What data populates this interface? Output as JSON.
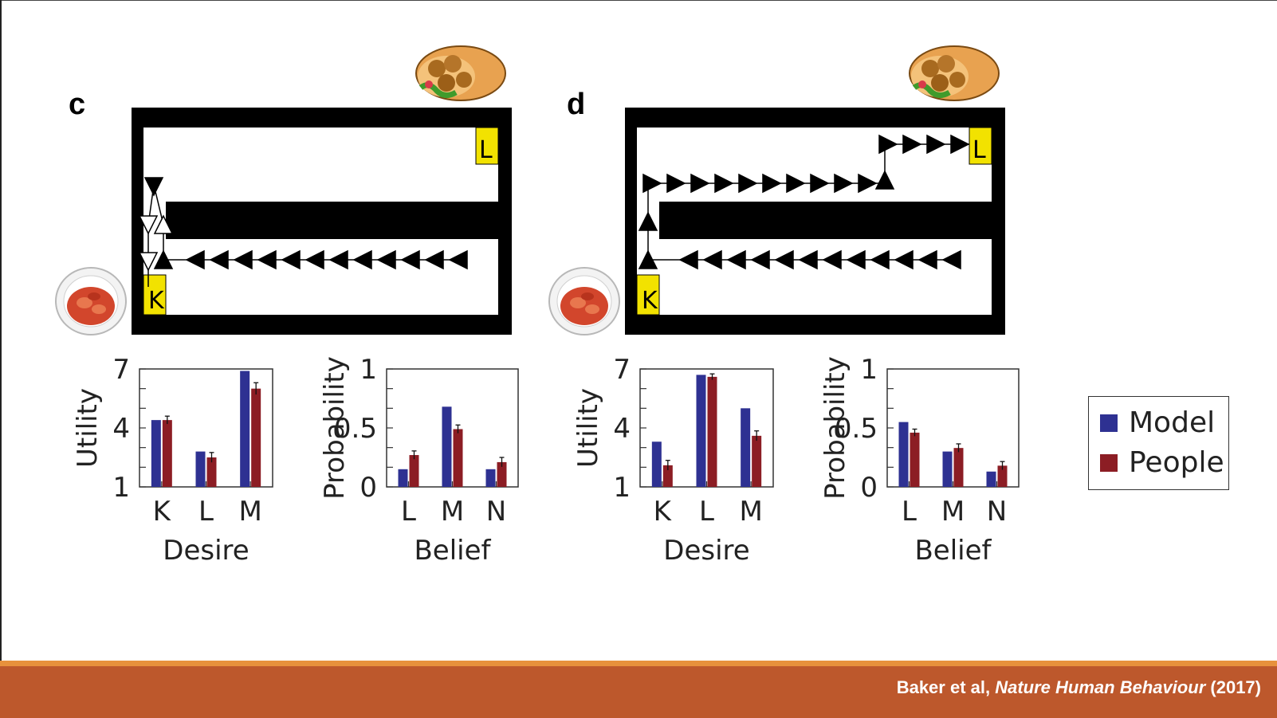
{
  "citation": {
    "authors": "Baker et al, ",
    "journal": "Nature Human Behaviour",
    "year": " (2017)"
  },
  "colors": {
    "model": "#2e3192",
    "people": "#8c1d24",
    "cell_yellow": "#f2e200",
    "footer": "#bd582c",
    "footer_accent": "#e7913c"
  },
  "panels": [
    {
      "label": "c",
      "maze_labels": {
        "left_cell": "K",
        "right_cell": "L"
      }
    },
    {
      "label": "d",
      "maze_labels": {
        "left_cell": "K",
        "right_cell": "L"
      }
    }
  ],
  "legend": {
    "model": "Model",
    "people": "People"
  },
  "chart_data": [
    {
      "panel": "c",
      "type": "bar",
      "xlabel": "Desire",
      "ylabel": "Utility",
      "categories": [
        "K",
        "L",
        "M"
      ],
      "ylim": [
        1,
        7
      ],
      "yticks": [
        "1",
        "4",
        "7"
      ],
      "series": [
        {
          "name": "Model",
          "values": [
            4.4,
            2.8,
            6.9
          ]
        },
        {
          "name": "People",
          "values": [
            4.4,
            2.5,
            6.0
          ]
        }
      ],
      "errors": [
        0.2,
        0.25,
        0.3
      ]
    },
    {
      "panel": "c",
      "type": "bar",
      "xlabel": "Belief",
      "ylabel": "Probability",
      "categories": [
        "L",
        "M",
        "N"
      ],
      "ylim": [
        0,
        1
      ],
      "yticks": [
        "0",
        "0.5",
        "1"
      ],
      "series": [
        {
          "name": "Model",
          "values": [
            0.15,
            0.68,
            0.15
          ]
        },
        {
          "name": "People",
          "values": [
            0.27,
            0.49,
            0.21
          ]
        }
      ],
      "errors": [
        0.035,
        0.035,
        0.04
      ]
    },
    {
      "panel": "d",
      "type": "bar",
      "xlabel": "Desire",
      "ylabel": "Utility",
      "categories": [
        "K",
        "L",
        "M"
      ],
      "ylim": [
        1,
        7
      ],
      "yticks": [
        "1",
        "4",
        "7"
      ],
      "series": [
        {
          "name": "Model",
          "values": [
            3.3,
            6.7,
            5.0
          ]
        },
        {
          "name": "People",
          "values": [
            2.1,
            6.6,
            3.6
          ]
        }
      ],
      "errors": [
        0.25,
        0.15,
        0.25
      ]
    },
    {
      "panel": "d",
      "type": "bar",
      "xlabel": "Belief",
      "ylabel": "Probability",
      "categories": [
        "L",
        "M",
        "N"
      ],
      "ylim": [
        0,
        1
      ],
      "yticks": [
        "0",
        "0.5",
        "1"
      ],
      "series": [
        {
          "name": "Model",
          "values": [
            0.55,
            0.3,
            0.13
          ]
        },
        {
          "name": "People",
          "values": [
            0.46,
            0.33,
            0.18
          ]
        }
      ],
      "errors": [
        0.03,
        0.035,
        0.035
      ]
    }
  ]
}
